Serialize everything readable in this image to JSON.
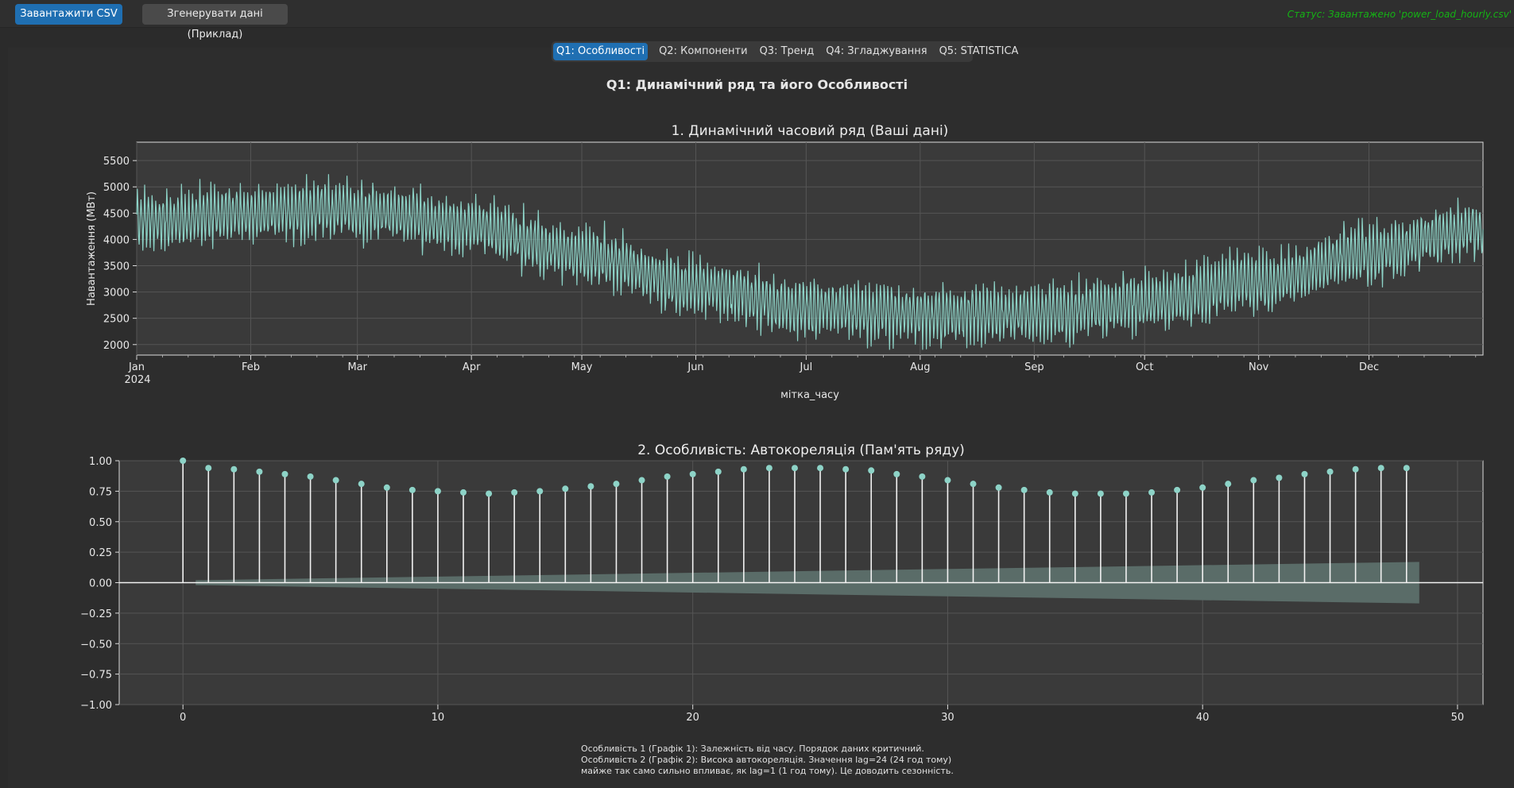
{
  "toolbar": {
    "upload_label": "Завантажити CSV",
    "generate_label": "Згенерувати дані (Приклад)",
    "status_text": "Статус: Завантажено 'power_load_hourly.csv'"
  },
  "tabs": [
    {
      "label": "Q1: Особливості",
      "active": true
    },
    {
      "label": "Q2: Компоненти",
      "active": false
    },
    {
      "label": "Q3: Тренд",
      "active": false
    },
    {
      "label": "Q4: Згладжування",
      "active": false
    },
    {
      "label": "Q5: STATISTICA",
      "active": false
    }
  ],
  "page_title": "Q1: Динамічний ряд та його Особливості",
  "colors": {
    "accent": "#1f6fb2",
    "series": "#8dd3c7",
    "status": "#15b215",
    "plot_bg": "#3a3a3a"
  },
  "chart_data": [
    {
      "type": "line",
      "title": "1. Динамічний часовий ряд (Ваші дані)",
      "xlabel": "мітка_часу",
      "ylabel": "Навантаження (МВт)",
      "x_ticks": [
        "Jan",
        "Feb",
        "Mar",
        "Apr",
        "May",
        "Jun",
        "Jul",
        "Aug",
        "Sep",
        "Oct",
        "Nov",
        "Dec"
      ],
      "x_year_label": "2024",
      "y_ticks": [
        2000,
        2500,
        3000,
        3500,
        4000,
        4500,
        5000,
        5500
      ],
      "ylim": [
        1800,
        5850
      ],
      "grid": true,
      "series": [
        {
          "values_daily_mean_by_month": {
            "x": [
              "2024-01-01",
              "2024-02-01",
              "2024-03-01",
              "2024-04-01",
              "2024-05-01",
              "2024-06-01",
              "2024-07-01",
              "2024-08-01",
              "2024-09-01",
              "2024-10-01",
              "2024-11-01",
              "2024-12-01",
              "2024-12-31"
            ],
            "y": [
              4350,
              4500,
              4550,
              4250,
              3700,
              3100,
              2700,
              2550,
              2600,
              2800,
              3200,
              3750,
              4200
            ]
          },
          "daily_amplitude": 450,
          "max": 5600,
          "min": 1900
        }
      ]
    },
    {
      "type": "scatter",
      "subtype": "stem",
      "title": "2. Особливість: Автокореляція (Пам'ять ряду)",
      "x": [
        0,
        1,
        2,
        3,
        4,
        5,
        6,
        7,
        8,
        9,
        10,
        11,
        12,
        13,
        14,
        15,
        16,
        17,
        18,
        19,
        20,
        21,
        22,
        23,
        24,
        25,
        26,
        27,
        28,
        29,
        30,
        31,
        32,
        33,
        34,
        35,
        36,
        37,
        38,
        39,
        40,
        41,
        42,
        43,
        44,
        45,
        46,
        47,
        48
      ],
      "values": [
        1.0,
        0.94,
        0.93,
        0.91,
        0.89,
        0.87,
        0.84,
        0.81,
        0.78,
        0.76,
        0.75,
        0.74,
        0.73,
        0.74,
        0.75,
        0.77,
        0.79,
        0.81,
        0.84,
        0.87,
        0.89,
        0.91,
        0.93,
        0.94,
        0.94,
        0.94,
        0.93,
        0.92,
        0.89,
        0.87,
        0.84,
        0.81,
        0.78,
        0.76,
        0.74,
        0.73,
        0.73,
        0.73,
        0.74,
        0.76,
        0.78,
        0.81,
        0.84,
        0.86,
        0.89,
        0.91,
        0.93,
        0.94,
        0.94
      ],
      "confidence_upper": [
        0.02,
        0.03,
        0.04,
        0.05,
        0.06,
        0.07,
        0.08,
        0.09,
        0.1,
        0.11,
        0.12,
        0.13,
        0.14,
        0.15,
        0.16,
        0.17
      ],
      "conf_upper_at_lag": {
        "start_lag": 0.5,
        "start": 0.02,
        "end_lag": 48.5,
        "end": 0.17
      },
      "x_ticks": [
        0,
        10,
        20,
        30,
        40,
        50
      ],
      "y_ticks": [
        "1.00",
        "0.75",
        "0.50",
        "0.25",
        "0.00",
        "−0.25",
        "−0.50",
        "−0.75",
        "−1.00"
      ],
      "xlim": [
        -2.5,
        51
      ],
      "ylim": [
        -1.0,
        1.0
      ],
      "grid": true
    }
  ],
  "notes": [
    "Особливість 1 (Графік 1): Залежність від часу. Порядок даних критичний.",
    "Особливість 2 (Графік 2): Висока автокореляція. Значення lag=24 (24 год тому)",
    "майже так само сильно впливає, як lag=1 (1 год тому). Це доводить сезонність."
  ]
}
